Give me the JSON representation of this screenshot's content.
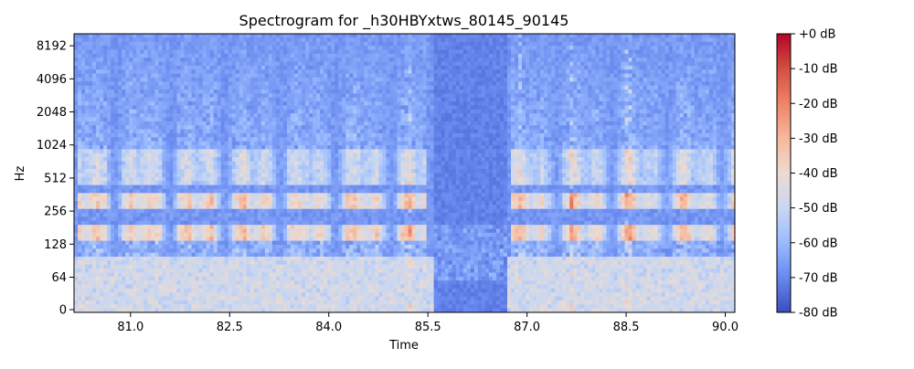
{
  "chart_data": {
    "type": "heatmap",
    "title": "Spectrogram for _h30HBYxtws_80145_90145",
    "xlabel": "Time",
    "ylabel": "Hz",
    "x_range": [
      80.145,
      90.145
    ],
    "x_ticks": [
      {
        "value": 81.0,
        "label": "81.0"
      },
      {
        "value": 82.5,
        "label": "82.5"
      },
      {
        "value": 84.0,
        "label": "84.0"
      },
      {
        "value": 85.5,
        "label": "85.5"
      },
      {
        "value": 87.0,
        "label": "87.0"
      },
      {
        "value": 88.5,
        "label": "88.5"
      },
      {
        "value": 90.0,
        "label": "90.0"
      }
    ],
    "y_scale": "log (symlog, linear below 64 Hz)",
    "y_range_hz": [
      0,
      11025
    ],
    "y_ticks": [
      {
        "value": 0,
        "label": "0"
      },
      {
        "value": 64,
        "label": "64"
      },
      {
        "value": 128,
        "label": "128"
      },
      {
        "value": 256,
        "label": "256"
      },
      {
        "value": 512,
        "label": "512"
      },
      {
        "value": 1024,
        "label": "1024"
      },
      {
        "value": 2048,
        "label": "2048"
      },
      {
        "value": 4096,
        "label": "4096"
      },
      {
        "value": 8192,
        "label": "8192"
      }
    ],
    "colorbar": {
      "range_db": [
        -80,
        0
      ],
      "ticks": [
        {
          "value": 0,
          "label": "+0 dB"
        },
        {
          "value": -10,
          "label": "-10 dB"
        },
        {
          "value": -20,
          "label": "-20 dB"
        },
        {
          "value": -30,
          "label": "-30 dB"
        },
        {
          "value": -40,
          "label": "-40 dB"
        },
        {
          "value": -50,
          "label": "-50 dB"
        },
        {
          "value": -60,
          "label": "-60 dB"
        },
        {
          "value": -70,
          "label": "-70 dB"
        },
        {
          "value": -80,
          "label": "-80 dB"
        }
      ],
      "colormap": "coolwarm",
      "colors": [
        "#3b4cc0",
        "#6889ee",
        "#9abbff",
        "#c9d7f0",
        "#eddbd0",
        "#f7b89c",
        "#ee8468",
        "#d34e40",
        "#b40426"
      ]
    },
    "speech_segments_s": [
      [
        80.2,
        85.5
      ],
      [
        86.75,
        90.145
      ]
    ],
    "silence_segment_s": [
      85.6,
      86.7
    ],
    "fundamental_band_hz": [
      140,
      190
    ],
    "harmonic_band_hz": [
      260,
      380
    ],
    "formant_band_hz": [
      450,
      900
    ]
  }
}
